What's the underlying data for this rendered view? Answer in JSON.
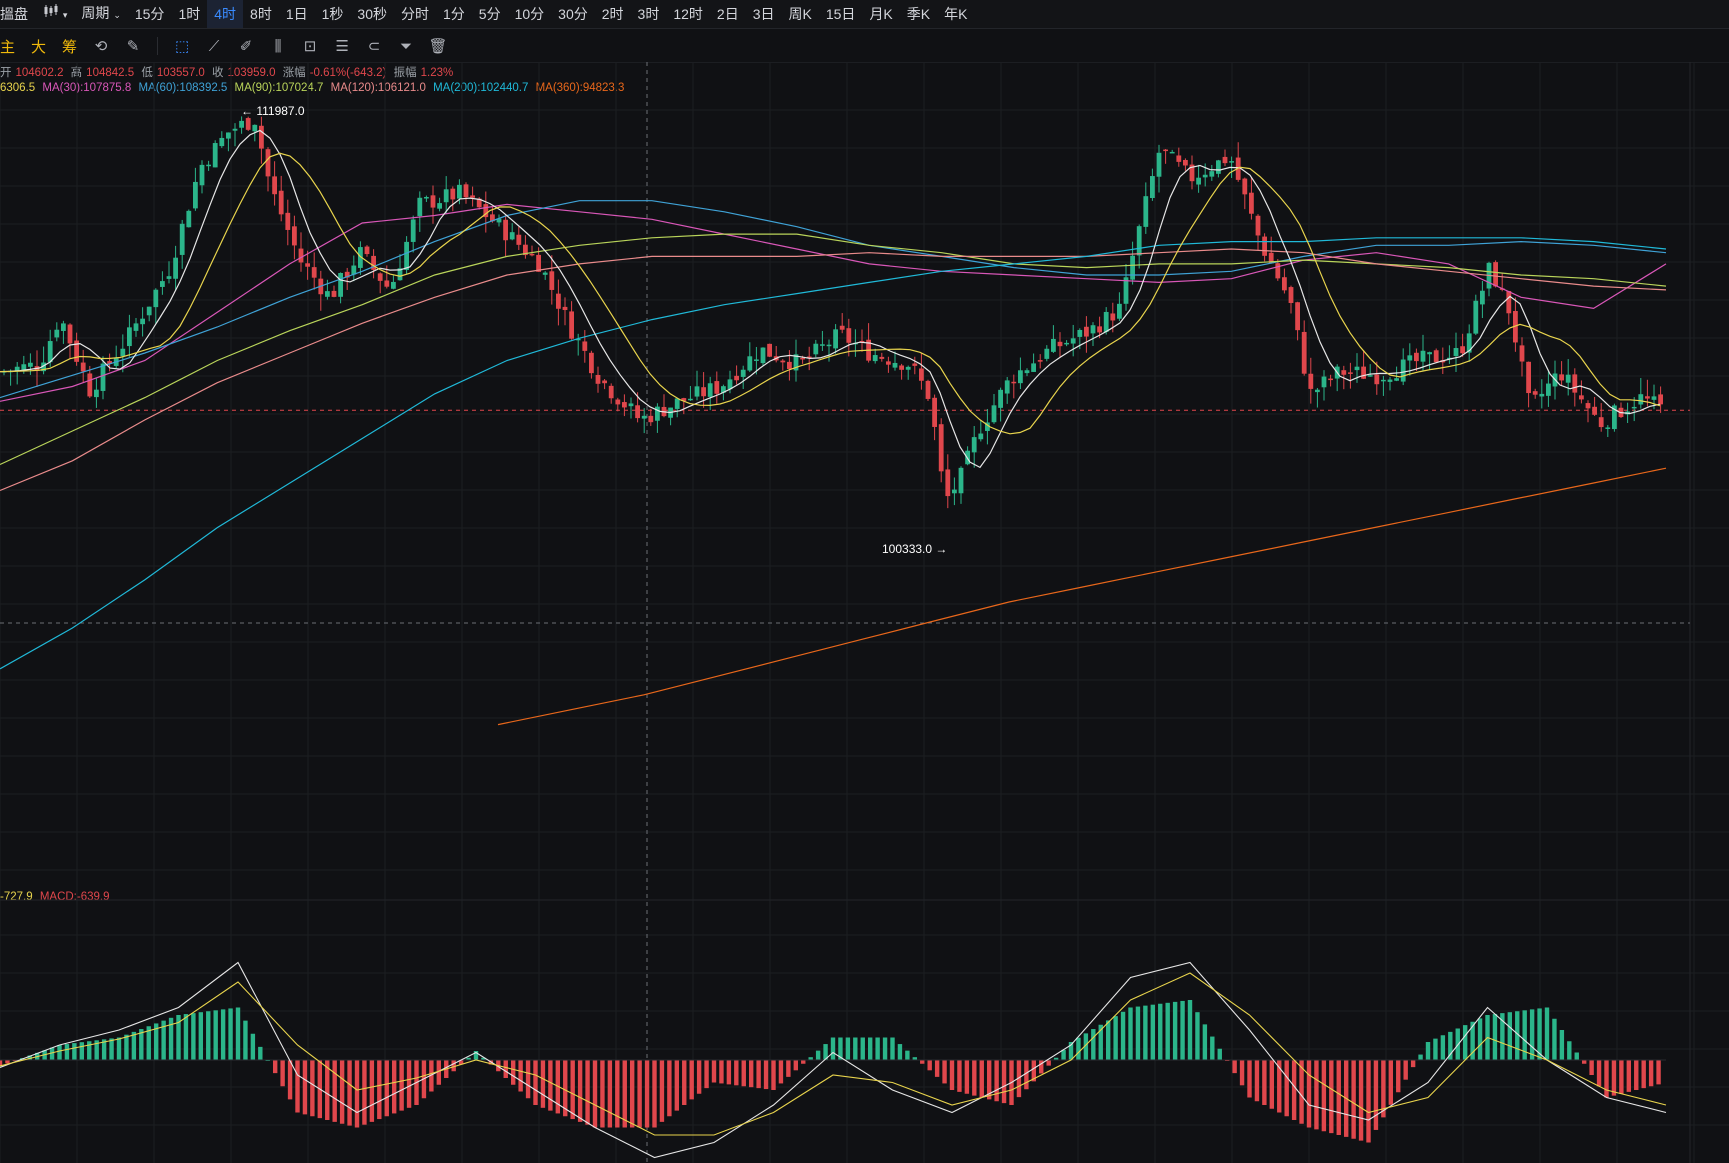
{
  "topbar": {
    "lead_label": "搵盘",
    "chart_style_icon": "candle-style-icon",
    "period_label": "周期",
    "intervals": [
      "15分",
      "1时",
      "4时",
      "8时",
      "1日",
      "1秒",
      "30秒",
      "分时",
      "1分",
      "5分",
      "10分",
      "30分",
      "2时",
      "3时",
      "12时",
      "2日",
      "3日",
      "周K",
      "15日",
      "月K",
      "季K",
      "年K"
    ],
    "active_interval": "4时"
  },
  "toolbar": {
    "chars": [
      "主",
      "大",
      "筹"
    ],
    "tools": [
      "refresh-icon",
      "pen-icon",
      "select-icon",
      "ruler-icon",
      "pencil-edit-icon",
      "indicator-icon",
      "lock-icon",
      "note-icon",
      "magnet-icon",
      "filter-icon",
      "trash-icon"
    ]
  },
  "ohlc": {
    "open_label": "开",
    "open": "104602.2",
    "high_label": "高",
    "high": "104842.5",
    "low_label": "低",
    "low": "103557.0",
    "close_label": "收",
    "close": "103959.0",
    "change_label": "涨幅",
    "change": "-0.61%(-643.2)",
    "amp_label": "振幅",
    "amp": "1.23%"
  },
  "ma_legend": [
    {
      "text": "6306.5",
      "color": "#e8d44d"
    },
    {
      "text": "MA(30):107875.8",
      "color": "#d957b8"
    },
    {
      "text": "MA(60):108392.5",
      "color": "#3fa2d6"
    },
    {
      "text": "MA(90):107024.7",
      "color": "#b9d45a"
    },
    {
      "text": "MA(120):106121.0",
      "color": "#e98b8b"
    },
    {
      "text": "MA(200):102440.7",
      "color": "#20b9d8"
    },
    {
      "text": "MA(360):94823.3",
      "color": "#e8671b"
    }
  ],
  "macd_legend": [
    {
      "text": "-727.9",
      "color": "#e8d44d"
    },
    {
      "text": "MACD:-639.9",
      "color": "#e0474c"
    }
  ],
  "annotations": {
    "high_mark": "111987.0",
    "low_mark": "100333.0"
  },
  "colors": {
    "up": "#2bb58a",
    "down": "#e0474c",
    "grid": "#1c1e22",
    "background": "#101114",
    "fast_line": "#e6e6e6",
    "slow_line": "#e8d44d"
  },
  "chart_data": {
    "type": "candlestick",
    "price_series": [
      {
        "name": "MA(30)",
        "values": [
          104200,
          104600,
          105300,
          106600,
          107900,
          109000,
          109200,
          109500,
          109300,
          109100,
          108700,
          108300,
          107900,
          107700,
          107600,
          107500,
          107400,
          107500,
          108000,
          108200,
          107900,
          107000,
          106700,
          107900
        ]
      },
      {
        "name": "MA(60)",
        "values": [
          104300,
          104900,
          105500,
          106200,
          107000,
          107700,
          108500,
          109200,
          109600,
          109600,
          109300,
          108900,
          108400,
          108100,
          107800,
          107600,
          107600,
          107700,
          108100,
          108400,
          108400,
          108500,
          108400,
          108200
        ]
      },
      {
        "name": "MA(90)",
        "values": [
          102500,
          103400,
          104300,
          105300,
          106100,
          106800,
          107600,
          108100,
          108400,
          108600,
          108700,
          108700,
          108400,
          108200,
          107900,
          107800,
          107900,
          107900,
          108000,
          107900,
          107800,
          107600,
          107500,
          107300
        ]
      },
      {
        "name": "MA(120)",
        "values": [
          101800,
          102600,
          103700,
          104700,
          105500,
          106300,
          107000,
          107600,
          107900,
          108100,
          108100,
          108100,
          108200,
          108100,
          108100,
          108100,
          108200,
          108300,
          108200,
          107900,
          107700,
          107500,
          107300,
          107200
        ]
      },
      {
        "name": "MA(200)",
        "values": [
          97000,
          98100,
          99400,
          100800,
          102000,
          103200,
          104400,
          105300,
          105900,
          106400,
          106800,
          107100,
          107400,
          107700,
          107900,
          108100,
          108400,
          108500,
          108500,
          108600,
          108600,
          108600,
          108500,
          108300
        ]
      },
      {
        "name": "MA(360)",
        "values": [
          95500,
          95900,
          96300,
          96800,
          97300,
          97800,
          98300,
          98800,
          99200,
          99600,
          100000,
          100400,
          100800,
          101200,
          101600,
          102000,
          102400
        ]
      }
    ],
    "price_high": 111987.0,
    "price_low": 100333.0,
    "last_close": 103959.0,
    "macd": {
      "dif": [
        -50,
        100,
        200,
        350,
        650,
        -100,
        -350,
        -150,
        50,
        -200,
        -450,
        -650,
        -550,
        -300,
        50,
        -200,
        -350,
        -150,
        100,
        550,
        650,
        200,
        -300,
        -400,
        -150,
        350,
        0,
        -250,
        -350
      ],
      "dea": [
        -40,
        60,
        140,
        250,
        520,
        100,
        -200,
        -120,
        0,
        -100,
        -300,
        -500,
        -500,
        -350,
        -100,
        -150,
        -300,
        -200,
        0,
        400,
        580,
        300,
        -100,
        -350,
        -250,
        150,
        0,
        -200,
        -300
      ],
      "hist": [
        -40,
        100,
        150,
        300,
        350,
        -350,
        -450,
        -300,
        60,
        -300,
        -450,
        -450,
        -150,
        -200,
        150,
        150,
        -200,
        -300,
        120,
        350,
        400,
        -250,
        -450,
        -550,
        120,
        300,
        350,
        -250,
        -150
      ]
    }
  }
}
